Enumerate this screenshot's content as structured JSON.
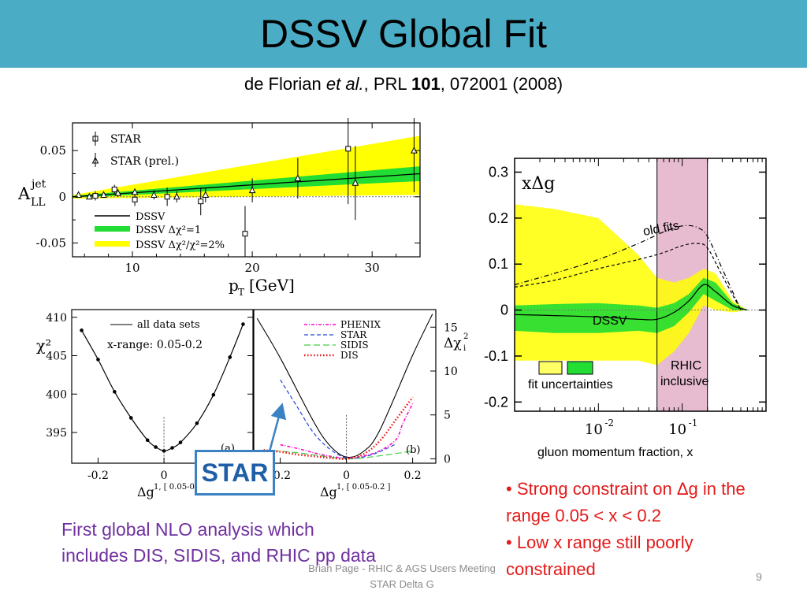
{
  "slide": {
    "title": "DSSV Global Fit",
    "ref_authors": "de Florian",
    "ref_etal": "et al.",
    "ref_journal": ", PRL",
    "ref_volume": "101",
    "ref_rest": ", 072001 (2008)",
    "star_box_label": "STAR",
    "purple_note_line1": "First global NLO analysis which",
    "purple_note_line2": "includes DIS, SIDIS, and RHIC pp data",
    "bullet1": "• Strong constraint on Δg in the range 0.05 < x < 0.2",
    "bullet2": "• Low x range still poorly constrained",
    "footer_line1": "Brian Page - RHIC & AGS Users Meeting",
    "footer_line2": "STAR Delta G",
    "page_number": "9",
    "colors": {
      "title_bar": "#4bacc6",
      "bullets": "#e41a1a",
      "note": "#7030a0",
      "star_box": "#3b82c4",
      "band_yellow": "#ffff00",
      "band_green": "#22dd33",
      "rhic_band": "#e8bcd0"
    }
  },
  "chart_data": [
    {
      "type": "scatter",
      "ylabel": "A_LL^jet",
      "xlabel": "p_T [GeV]",
      "xlim": [
        5,
        34
      ],
      "ylim": [
        -0.065,
        0.08
      ],
      "yticks": [
        "0.05",
        "0",
        "-0.05"
      ],
      "xticks": [
        "10",
        "20",
        "30"
      ],
      "legend_markers": [
        "STAR",
        "STAR (prel.)"
      ],
      "legend_lines": [
        "DSSV",
        "DSSV Δχ²=1",
        "DSSV Δχ²/χ²=2%"
      ],
      "series": [
        {
          "name": "STAR",
          "marker": "square",
          "x": [
            6.9,
            8.5,
            10.2,
            12.9,
            15.7,
            19.4,
            28.0
          ],
          "y": [
            0.001,
            0.008,
            -0.003,
            0.0,
            -0.005,
            -0.04,
            0.052
          ],
          "err": [
            0.005,
            0.005,
            0.007,
            0.01,
            0.015,
            0.03,
            0.06
          ]
        },
        {
          "name": "STAR (prel.)",
          "marker": "triangle",
          "x": [
            5.5,
            6.4,
            7.6,
            8.8,
            10.2,
            11.8,
            13.7,
            16.1,
            20.0,
            23.8,
            28.6,
            33.5
          ],
          "y": [
            0.002,
            0.0,
            0.002,
            0.004,
            0.005,
            0.002,
            0.0,
            0.002,
            0.007,
            0.02,
            0.015,
            0.05
          ],
          "err": [
            0.003,
            0.003,
            0.003,
            0.004,
            0.004,
            0.005,
            0.006,
            0.008,
            0.013,
            0.022,
            0.04,
            0.045
          ]
        }
      ],
      "curves": {
        "dssv": {
          "x": [
            5,
            34
          ],
          "y": [
            0.0,
            0.025
          ]
        },
        "band_green": {
          "x": [
            5,
            34
          ],
          "upper": [
            0.001,
            0.033
          ],
          "lower": [
            -0.001,
            0.017
          ]
        },
        "band_yellow": {
          "x": [
            5,
            34
          ],
          "upper": [
            0.002,
            0.066
          ],
          "lower": [
            -0.002,
            0.002
          ]
        }
      }
    },
    {
      "type": "line",
      "ylabel": "χ²",
      "xlabel": "Δg^{1, [0.05-0.2]}",
      "xlim": [
        -0.28,
        0.27
      ],
      "ylim": [
        391,
        411
      ],
      "yticks": [
        "410",
        "405",
        "400",
        "395"
      ],
      "xticks": [
        "-0.2",
        "0",
        "0.2"
      ],
      "legend": [
        "all data sets"
      ],
      "annotations": [
        "x-range: 0.05-0.2",
        "(a)"
      ],
      "series": [
        {
          "name": "all data sets",
          "x": [
            -0.25,
            -0.2,
            -0.15,
            -0.1,
            -0.05,
            -0.025,
            0.0,
            0.025,
            0.05,
            0.1,
            0.15,
            0.2,
            0.24
          ],
          "y": [
            408.3,
            404.5,
            400.3,
            396.9,
            394.0,
            393.1,
            392.6,
            393.0,
            393.7,
            396.2,
            399.9,
            404.8,
            409.1
          ]
        }
      ]
    },
    {
      "type": "line",
      "ylabel": "Δχ²_i",
      "xlabel": "Δg^{1, [0.05-0.2]}",
      "xlim": [
        -0.28,
        0.27
      ],
      "ylim": [
        -0.5,
        17
      ],
      "yticks": [
        "15",
        "10",
        "5",
        "0"
      ],
      "xticks": [
        "-0.2",
        "0",
        "0.2"
      ],
      "legend": [
        "PHENIX",
        "STAR",
        "SIDIS",
        "DIS"
      ],
      "annotations": [
        "(b)"
      ],
      "series": [
        {
          "name": "PHENIX",
          "x": [
            -0.2,
            -0.15,
            -0.1,
            -0.05,
            0.0,
            0.05,
            0.1,
            0.15,
            0.17,
            0.2
          ],
          "y": [
            1.6,
            1.2,
            0.7,
            0.3,
            0.1,
            0.3,
            0.9,
            2.2,
            4.0,
            6.3
          ]
        },
        {
          "name": "STAR",
          "x": [
            -0.2,
            -0.15,
            -0.1,
            -0.05,
            0.0,
            0.05,
            0.1,
            0.15
          ],
          "y": [
            9.0,
            6.0,
            3.0,
            1.1,
            0.1,
            0.2,
            0.8,
            1.7
          ]
        },
        {
          "name": "SIDIS",
          "x": [
            -0.25,
            -0.15,
            -0.05,
            0.0,
            0.05,
            0.15,
            0.2
          ],
          "y": [
            1.0,
            0.7,
            0.2,
            0.0,
            0.1,
            0.6,
            0.9
          ]
        },
        {
          "name": "DIS",
          "x": [
            -0.25,
            -0.2,
            -0.15,
            -0.1,
            -0.05,
            0.0,
            0.05,
            0.1,
            0.15,
            0.2
          ],
          "y": [
            1.0,
            0.8,
            0.5,
            0.3,
            0.1,
            0.0,
            0.5,
            2.0,
            4.5,
            7.0
          ]
        }
      ],
      "black_curve": {
        "x": [
          -0.27,
          -0.2,
          -0.1,
          -0.05,
          0.0,
          0.05,
          0.1,
          0.2,
          0.26
        ],
        "y": [
          16.0,
          11.5,
          4.3,
          1.5,
          0.2,
          0.8,
          3.2,
          11.8,
          16.5
        ]
      }
    },
    {
      "type": "area",
      "title": "xΔg",
      "xlabel": "gluon momentum fraction, x",
      "x_scale": "log",
      "xlim": [
        0.001,
        1
      ],
      "ylim": [
        -0.22,
        0.33
      ],
      "yticks": [
        "0.3",
        "0.2",
        "0.1",
        "0",
        "-0.1",
        "-0.2"
      ],
      "xticks": [
        "10⁻²",
        "10⁻¹"
      ],
      "legend": [
        "fit uncertainties"
      ],
      "annotations": [
        "old fits",
        "DSSV",
        "RHIC",
        "inclusive"
      ],
      "rhic_range": [
        0.05,
        0.2
      ],
      "series": [
        {
          "name": "DSSV",
          "x": [
            0.001,
            0.003,
            0.01,
            0.03,
            0.05,
            0.08,
            0.12,
            0.18,
            0.25,
            0.4,
            0.6
          ],
          "y": [
            -0.01,
            -0.012,
            -0.015,
            -0.02,
            -0.02,
            -0.005,
            0.02,
            0.055,
            0.04,
            0.01,
            0.0
          ]
        },
        {
          "name": "old fits",
          "style": "dashdot",
          "x": [
            0.001,
            0.003,
            0.01,
            0.03,
            0.06,
            0.1,
            0.15,
            0.2,
            0.3,
            0.5
          ],
          "y": [
            0.055,
            0.08,
            0.11,
            0.145,
            0.17,
            0.183,
            0.18,
            0.16,
            0.09,
            0.0
          ]
        },
        {
          "name": "old fits",
          "style": "dashed",
          "x": [
            0.001,
            0.003,
            0.01,
            0.03,
            0.06,
            0.1,
            0.15,
            0.2,
            0.3,
            0.5
          ],
          "y": [
            0.05,
            0.065,
            0.09,
            0.11,
            0.125,
            0.14,
            0.145,
            0.135,
            0.075,
            0.0
          ]
        }
      ],
      "band_yellow": {
        "x": [
          0.001,
          0.003,
          0.01,
          0.03,
          0.05,
          0.08,
          0.12,
          0.18,
          0.25,
          0.4,
          0.6
        ],
        "upper": [
          0.23,
          0.22,
          0.2,
          0.12,
          0.07,
          0.06,
          0.07,
          0.09,
          0.08,
          0.02,
          0.0
        ],
        "lower": [
          -0.11,
          -0.11,
          -0.11,
          -0.11,
          -0.12,
          -0.09,
          -0.05,
          0.01,
          0.0,
          -0.005,
          0.0
        ]
      },
      "band_green": {
        "x": [
          0.001,
          0.003,
          0.01,
          0.03,
          0.05,
          0.08,
          0.12,
          0.18,
          0.25,
          0.4,
          0.6
        ],
        "upper": [
          0.01,
          0.013,
          0.015,
          0.01,
          0.005,
          0.015,
          0.035,
          0.07,
          0.06,
          0.015,
          0.0
        ],
        "lower": [
          -0.045,
          -0.05,
          -0.05,
          -0.045,
          -0.05,
          -0.035,
          -0.005,
          0.035,
          0.02,
          0.0,
          0.0
        ]
      }
    }
  ]
}
